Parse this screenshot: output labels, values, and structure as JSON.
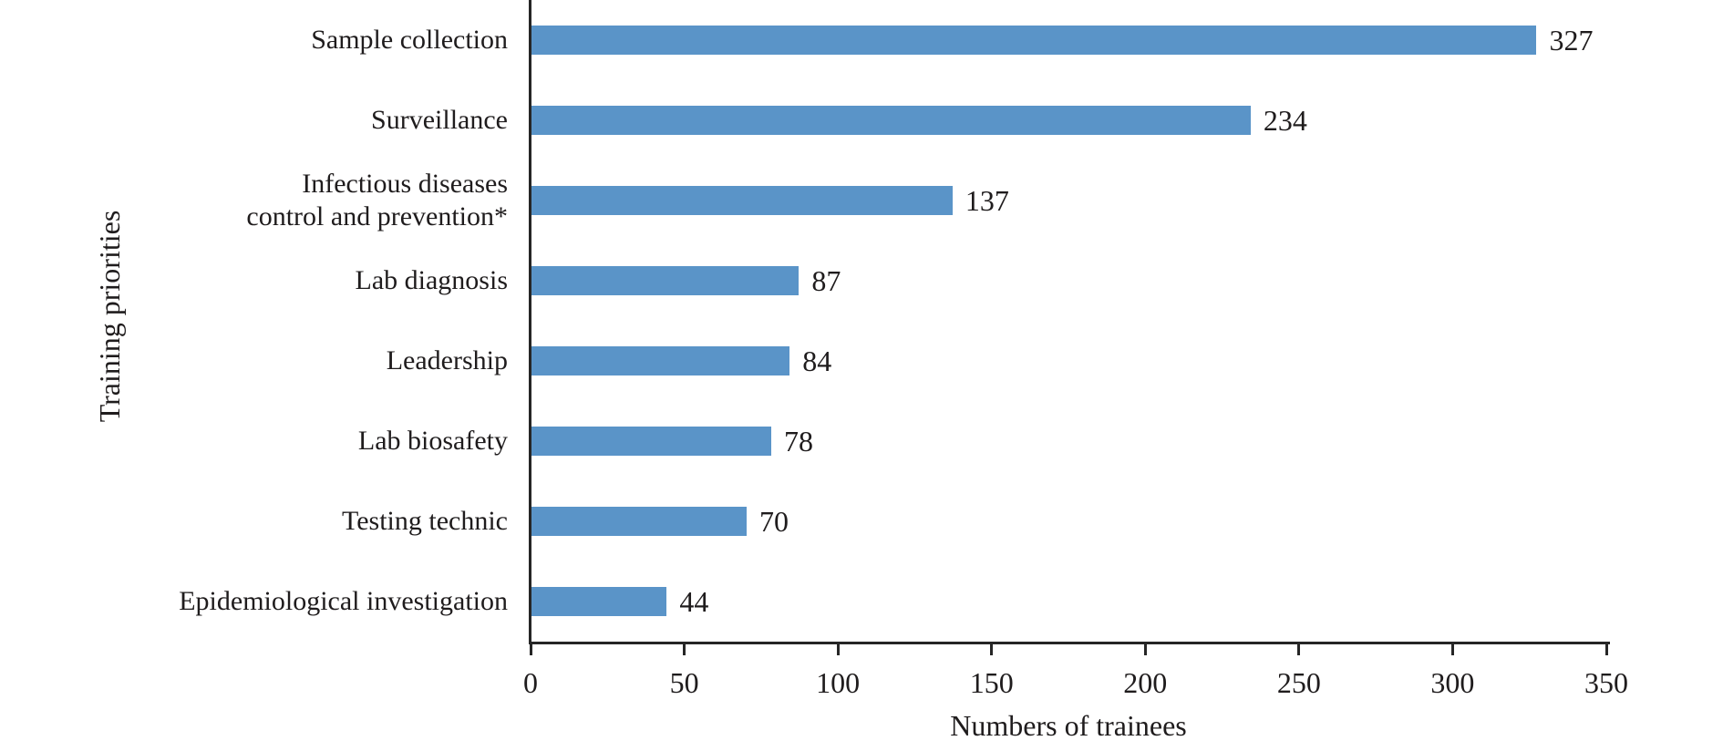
{
  "chart_data": {
    "type": "bar",
    "orientation": "horizontal",
    "title": "",
    "xlabel": "Numbers of trainees",
    "ylabel": "Training priorities",
    "categories": [
      "Sample collection",
      "Surveillance",
      "Infectious diseases\ncontrol and prevention*",
      "Lab diagnosis",
      "Leadership",
      "Lab biosafety",
      "Testing technic",
      "Epidemiological investigation"
    ],
    "values": [
      327,
      234,
      137,
      87,
      84,
      78,
      70,
      44
    ],
    "value_labels": [
      "327",
      "234",
      "137",
      "87",
      "84",
      "78",
      "70",
      "44"
    ],
    "xticks": [
      0,
      50,
      100,
      150,
      200,
      250,
      300,
      350
    ],
    "xtick_labels": [
      "0",
      "50",
      "100",
      "150",
      "200",
      "250",
      "300",
      "350"
    ],
    "xlim": [
      0,
      350
    ],
    "grid": false,
    "legend": null,
    "colors": {
      "bar": "#5A94C8",
      "axis": "#262626",
      "text": "#1f1c1d",
      "background": "#ffffff"
    }
  }
}
